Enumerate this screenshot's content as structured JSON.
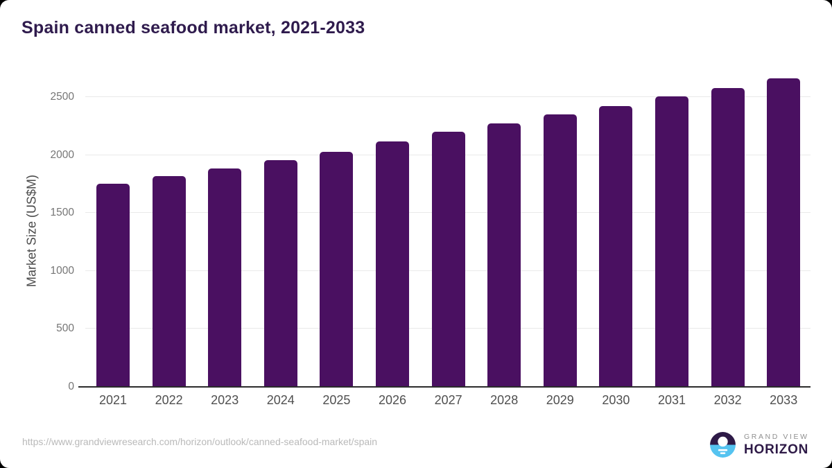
{
  "title": "Spain canned seafood market, 2021-2033",
  "chart_data": {
    "type": "bar",
    "title": "Spain canned seafood market, 2021-2033",
    "categories": [
      "2021",
      "2022",
      "2023",
      "2024",
      "2025",
      "2026",
      "2027",
      "2028",
      "2029",
      "2030",
      "2031",
      "2032",
      "2033"
    ],
    "values": [
      1755,
      1820,
      1885,
      1955,
      2030,
      2115,
      2200,
      2275,
      2350,
      2425,
      2505,
      2580,
      2660
    ],
    "xlabel": "",
    "ylabel": "Market Size (US$M)",
    "yticks": [
      0,
      500,
      1000,
      1500,
      2000,
      2500
    ],
    "ylim": [
      0,
      2769
    ],
    "grid": true,
    "legend": false,
    "bar_color": "#4a1061"
  },
  "footer": {
    "source_url": "https://www.grandviewresearch.com/horizon/outlook/canned-seafood-market/spain",
    "logo": {
      "top_text": "GRAND VIEW",
      "bottom_text": "HORIZON"
    }
  },
  "colors": {
    "bar": "#4a1061",
    "title": "#2f1b4d",
    "axis_line": "#2b2b2b",
    "gridline": "#e9e9e9",
    "y_tick_label": "#757575",
    "x_tick_label": "#4f4f4f",
    "url_text": "#b9b9b9",
    "logo_dark": "#2e1a47",
    "logo_blue": "#55c3f0",
    "logo_gray": "#8f8f8f"
  }
}
